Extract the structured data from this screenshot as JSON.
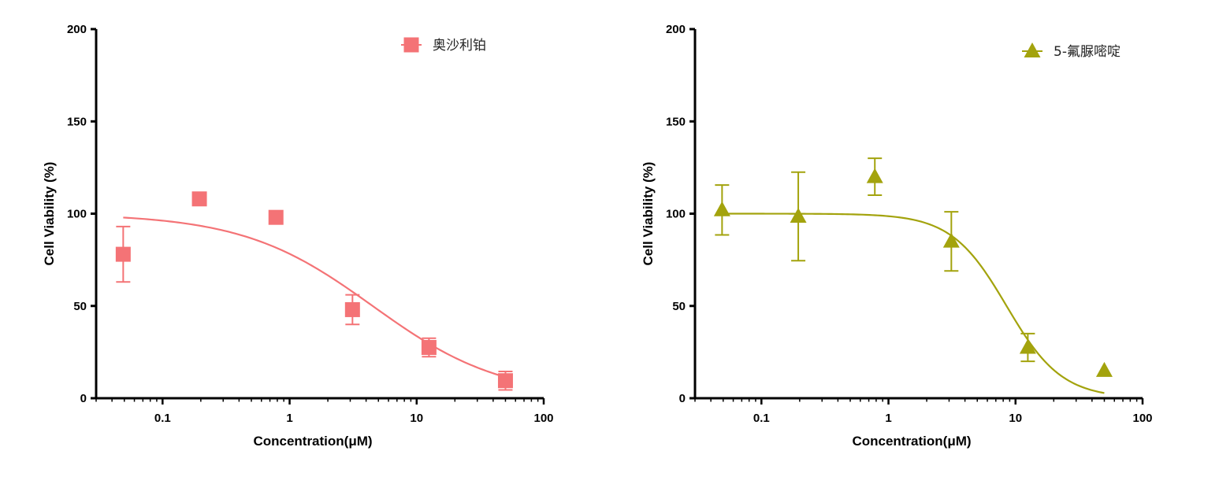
{
  "chart_data": [
    {
      "type": "scatter",
      "xscale": "log",
      "xlabel": "Concentration(μM)",
      "ylabel": "Cell Viability (%)",
      "xlim": [
        0.03,
        100
      ],
      "ylim": [
        0,
        200
      ],
      "x_ticks": [
        "0.1",
        "1",
        "10",
        "100"
      ],
      "y_ticks": [
        "0",
        "50",
        "100",
        "150",
        "200"
      ],
      "legend_position": "top-right",
      "grid": false,
      "color": "#F47376",
      "series": [
        {
          "name": "奥沙利铂",
          "marker": "square",
          "x": [
            0.049,
            0.195,
            0.781,
            3.125,
            12.5,
            50
          ],
          "y": [
            78,
            108,
            98,
            48,
            27.5,
            9.5
          ],
          "error": [
            15,
            0,
            0,
            8,
            5,
            5
          ],
          "fit": {
            "top": 100,
            "bottom": 0,
            "ec50": 4.5,
            "hill": 0.85
          }
        }
      ]
    },
    {
      "type": "scatter",
      "xscale": "log",
      "xlabel": "Concentration(μM)",
      "ylabel": "Cell Viability (%)",
      "xlim": [
        0.03,
        100
      ],
      "ylim": [
        0,
        200
      ],
      "x_ticks": [
        "0.1",
        "1",
        "10",
        "100"
      ],
      "y_ticks": [
        "0",
        "50",
        "100",
        "150",
        "200"
      ],
      "legend_position": "top-right",
      "grid": false,
      "color": "#A3A30D",
      "series": [
        {
          "name": "5-氟脲嘧啶",
          "marker": "triangle",
          "x": [
            0.049,
            0.195,
            0.781,
            3.125,
            12.5,
            50
          ],
          "y": [
            102,
            98.5,
            120,
            85,
            27.5,
            15
          ],
          "error": [
            13.5,
            24,
            10,
            16,
            7.5,
            0
          ],
          "fit": {
            "top": 100,
            "bottom": 0,
            "ec50": 8.5,
            "hill": 2.0
          }
        }
      ]
    }
  ]
}
